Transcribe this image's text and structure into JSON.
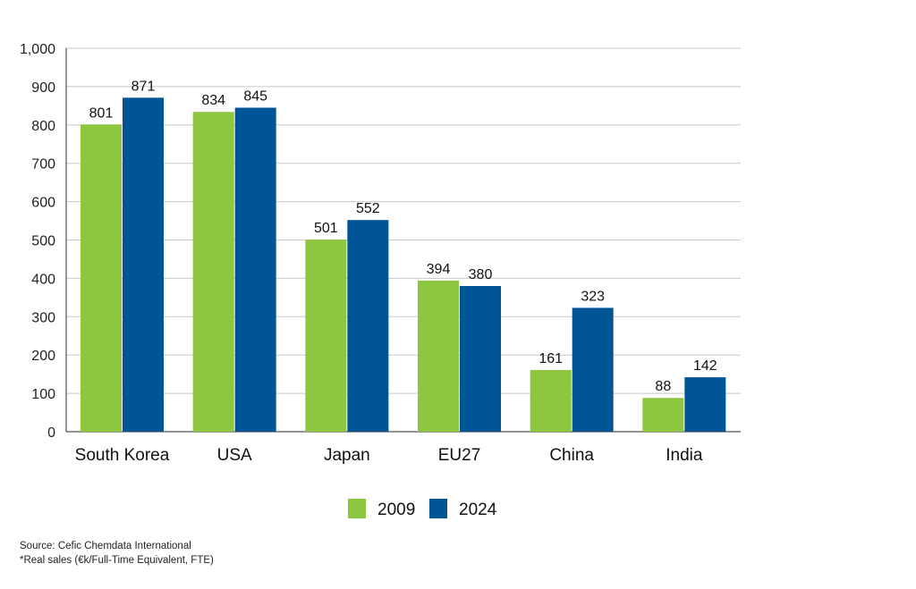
{
  "chart_data": {
    "type": "bar",
    "categories": [
      "South Korea",
      "USA",
      "Japan",
      "EU27",
      "China",
      "India"
    ],
    "series": [
      {
        "name": "2009",
        "values": [
          801,
          834,
          501,
          394,
          161,
          88
        ],
        "color": "#8dc63f"
      },
      {
        "name": "2024",
        "values": [
          871,
          845,
          552,
          380,
          323,
          142
        ],
        "color": "#005596"
      }
    ],
    "ylim": [
      0,
      1000
    ],
    "yticks": [
      0,
      100,
      200,
      300,
      400,
      500,
      600,
      700,
      800,
      900,
      1000
    ],
    "ytick_labels": [
      "0",
      "100",
      "200",
      "300",
      "400",
      "500",
      "600",
      "700",
      "800",
      "900",
      "1,000"
    ],
    "grid": true,
    "legend_placement": "bottom",
    "data_labels": true
  },
  "notes": {
    "source": "Source: Cefic Chemdata International",
    "footnote": "*Real sales (€k/Full-Time Equivalent, FTE)"
  }
}
